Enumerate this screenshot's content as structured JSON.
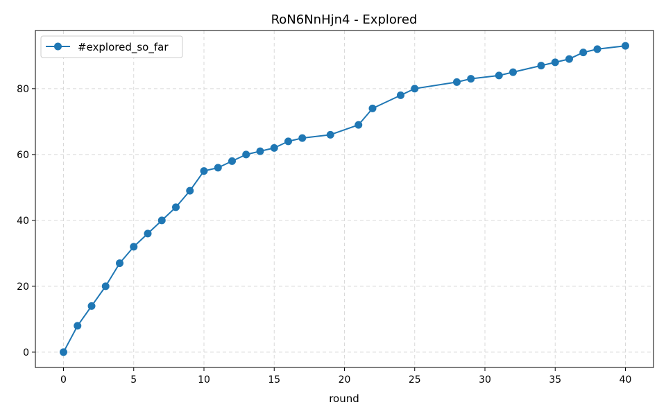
{
  "chart_data": {
    "type": "line",
    "title": "RoN6NnHjn4 - Explored",
    "xlabel": "round",
    "ylabel": "",
    "xlim": [
      -2,
      42
    ],
    "ylim": [
      -4.65,
      97.65
    ],
    "xticks": [
      0,
      5,
      10,
      15,
      20,
      25,
      30,
      35,
      40
    ],
    "yticks": [
      0,
      20,
      40,
      60,
      80
    ],
    "grid": true,
    "legend_position": "top-left",
    "series": [
      {
        "name": "#explored_so_far",
        "color": "#1f77b4",
        "marker": "circle",
        "x": [
          0,
          1,
          2,
          3,
          4,
          5,
          6,
          7,
          8,
          9,
          10,
          11,
          12,
          13,
          14,
          15,
          16,
          17,
          19,
          21,
          22,
          24,
          25,
          28,
          29,
          31,
          32,
          34,
          35,
          36,
          37,
          38,
          40
        ],
        "y": [
          0,
          8,
          14,
          20,
          27,
          32,
          36,
          40,
          44,
          49,
          55,
          56,
          58,
          60,
          61,
          62,
          64,
          65,
          66,
          69,
          74,
          78,
          80,
          82,
          83,
          84,
          85,
          87,
          88,
          89,
          91,
          92,
          93
        ]
      }
    ]
  }
}
